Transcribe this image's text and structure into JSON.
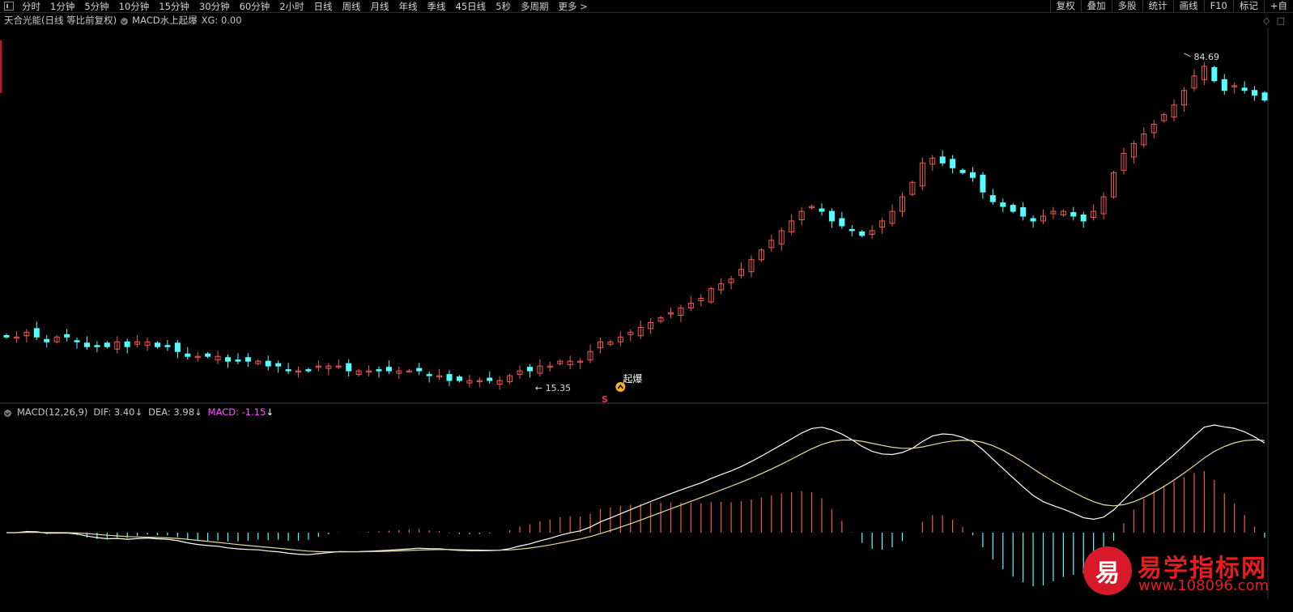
{
  "toolbar": {
    "items": [
      "分时",
      "1分钟",
      "5分钟",
      "10分钟",
      "15分钟",
      "30分钟",
      "60分钟",
      "2小时",
      "日线",
      "周线",
      "月线",
      "年线",
      "季线",
      "45日线",
      "5秒",
      "多周期",
      "更多 >"
    ],
    "right_items": [
      "复权",
      "叠加",
      "多股",
      "统计",
      "画线",
      "F10",
      "标记",
      "+自"
    ]
  },
  "info": {
    "stock": "天合光能(日线 等比前复权)",
    "indicator": "MACD水上起爆",
    "xg": "XG: 0.00"
  },
  "price": {
    "high_label": "84.69",
    "low_label": "15.35",
    "signal_label": "起爆",
    "s_marker": "S"
  },
  "macd": {
    "name": "MACD(12,26,9)",
    "dif": "DIF: 3.40",
    "dea": "DEA: 3.98",
    "macd": "MACD: -1.15",
    "arrow": "↓"
  },
  "watermark": {
    "logo_char": "易",
    "title": "易学指标网",
    "url": "www.108096.com"
  },
  "colors": {
    "up": "#ef5a4f",
    "down": "#54ffff",
    "dif": "#ffffff",
    "dea": "#e8dca0",
    "macd_label": "#ff55ff",
    "hist_up": "#ef5a4f",
    "hist_down": "#54ffff",
    "axis": "#b02020"
  },
  "chart_data": [
    {
      "type": "candlestick",
      "title": "天合光能(日线 等比前复权)",
      "annotations": [
        "84.69",
        "15.35",
        "起爆"
      ],
      "close_approx": [
        26,
        26,
        27,
        26,
        25,
        26,
        26,
        25,
        24,
        24,
        24,
        25,
        24,
        25,
        25,
        24,
        24,
        23,
        22,
        22,
        22,
        22,
        21,
        21,
        21,
        21,
        20,
        20,
        19,
        19,
        19,
        20,
        20,
        20,
        19,
        19,
        19,
        19,
        19,
        19,
        19,
        19,
        18,
        18,
        17,
        17,
        17,
        17,
        17,
        17,
        18,
        19,
        19,
        20,
        20,
        21,
        21,
        21,
        23,
        25,
        25,
        26,
        27,
        28,
        29,
        30,
        31,
        32,
        33,
        34,
        36,
        37,
        38,
        40,
        42,
        44,
        46,
        48,
        50,
        52,
        53,
        52,
        50,
        49,
        48,
        47,
        48,
        50,
        52,
        55,
        58,
        62,
        63,
        62,
        61,
        60,
        59,
        56,
        54,
        53,
        52,
        51,
        50,
        51,
        52,
        52,
        51,
        50,
        52,
        55,
        60,
        64,
        66,
        68,
        70,
        72,
        74,
        77,
        80,
        82,
        79,
        77,
        78,
        77,
        76,
        75
      ]
    },
    {
      "type": "line",
      "title": "MACD(12,26,9)",
      "series": [
        {
          "name": "DIF",
          "last": 3.4
        },
        {
          "name": "DEA",
          "last": 3.98
        },
        {
          "name": "MACD",
          "last": -1.15
        }
      ]
    }
  ]
}
